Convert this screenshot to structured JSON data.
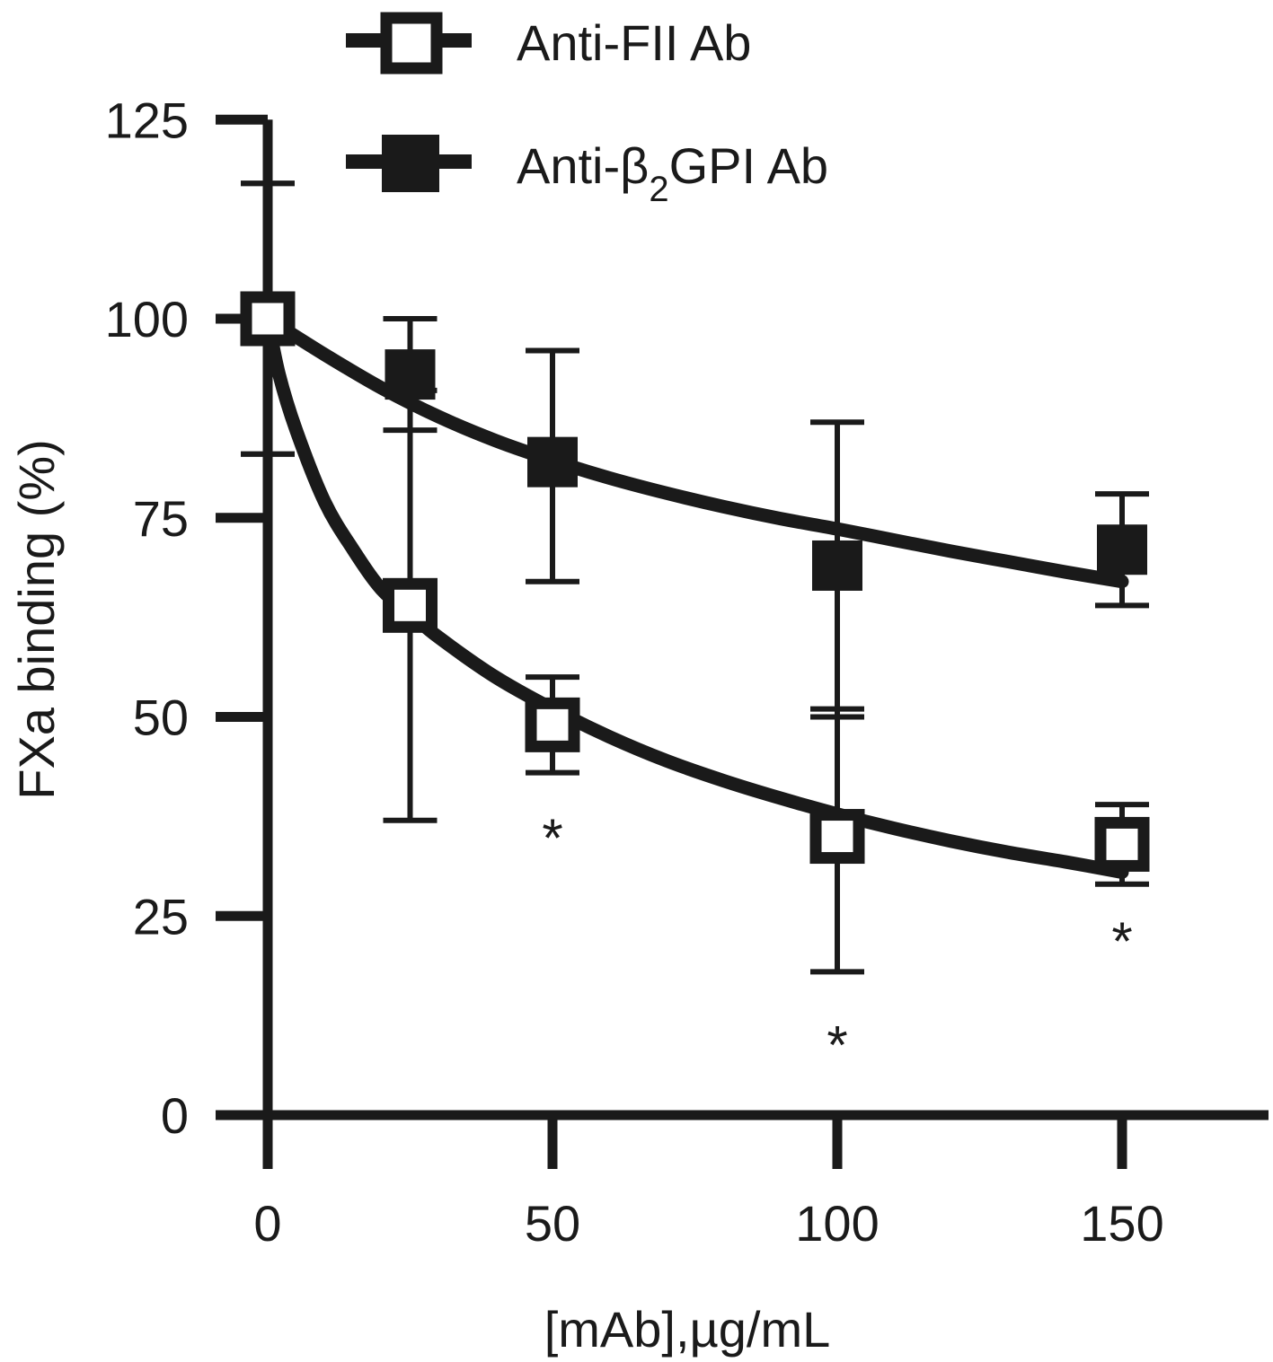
{
  "chart_data": {
    "type": "line",
    "title": "",
    "xlabel": "[mAb],µg/mL",
    "ylabel": "FXa binding (%)",
    "xlim": [
      0,
      175
    ],
    "ylim": [
      0,
      125
    ],
    "xticks": [
      0,
      50,
      100,
      150
    ],
    "yticks": [
      0,
      25,
      50,
      75,
      100,
      125
    ],
    "xtick_labels": [
      "0",
      "50",
      "100",
      "150"
    ],
    "ytick_labels": [
      "0",
      "25",
      "50",
      "75",
      "100",
      "125"
    ],
    "grid": false,
    "legend_position": "top",
    "ink_color": "#1a1a1a",
    "series": [
      {
        "name_text": "Anti-FII Ab",
        "marker": "open-square",
        "x": [
          0,
          25,
          50,
          100,
          150
        ],
        "y": [
          100,
          64,
          49,
          35,
          34
        ],
        "err_low": [
          83,
          37,
          43,
          18,
          29
        ],
        "err_high": [
          117,
          91,
          55,
          51,
          39
        ],
        "fit": [
          [
            0,
            100
          ],
          [
            2,
            93
          ],
          [
            5,
            86
          ],
          [
            10,
            77
          ],
          [
            15,
            71
          ],
          [
            20,
            66
          ],
          [
            25,
            63
          ],
          [
            30,
            60
          ],
          [
            40,
            55
          ],
          [
            50,
            51
          ],
          [
            60,
            47.5
          ],
          [
            70,
            44.5
          ],
          [
            80,
            42
          ],
          [
            90,
            39.8
          ],
          [
            100,
            37.8
          ],
          [
            110,
            36
          ],
          [
            120,
            34.4
          ],
          [
            130,
            33
          ],
          [
            140,
            31.8
          ],
          [
            150,
            30.5
          ]
        ]
      },
      {
        "name_main": "Anti-",
        "name_greek": "β",
        "name_sub": "2",
        "name_rest": "GPI Ab",
        "marker": "filled-square",
        "x": [
          0,
          25,
          50,
          100,
          150
        ],
        "y": [
          100,
          93,
          82,
          69,
          71
        ],
        "err_low": [
          83,
          86,
          67,
          50,
          64
        ],
        "err_high": [
          117,
          100,
          96,
          87,
          78
        ],
        "fit": [
          [
            0,
            100
          ],
          [
            10,
            95.5
          ],
          [
            20,
            91.3
          ],
          [
            30,
            87.7
          ],
          [
            40,
            84.7
          ],
          [
            50,
            82.2
          ],
          [
            60,
            80
          ],
          [
            70,
            78.1
          ],
          [
            80,
            76.4
          ],
          [
            90,
            74.9
          ],
          [
            100,
            73.6
          ],
          [
            110,
            72.2
          ],
          [
            120,
            70.8
          ],
          [
            130,
            69.5
          ],
          [
            140,
            68.2
          ],
          [
            150,
            67
          ]
        ]
      }
    ],
    "annotations": [
      {
        "text": "*",
        "x": 50,
        "y": 37
      },
      {
        "text": "*",
        "x": 100,
        "y": 11
      },
      {
        "text": "*",
        "x": 150,
        "y": 24
      }
    ]
  }
}
